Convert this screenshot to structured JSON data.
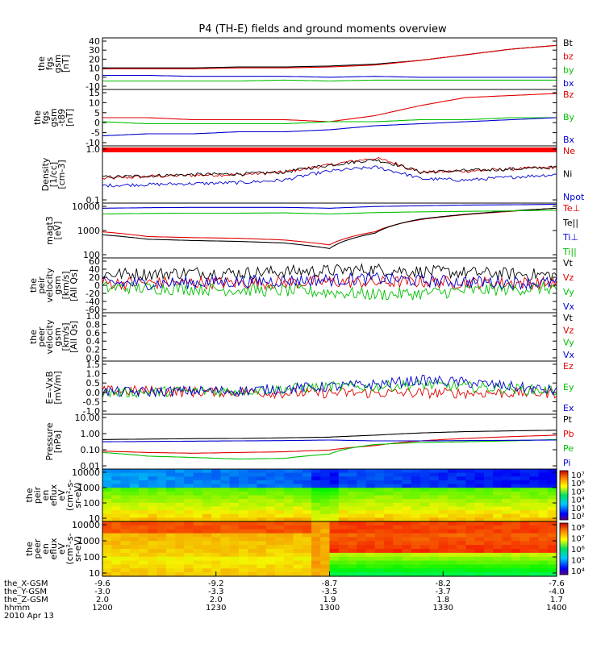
{
  "title": "P4 (TH-E) fields and ground moments overview",
  "panels": [
    {
      "ylabel_lines": [
        "the",
        "fgs",
        "gsm",
        "[nT]"
      ],
      "ticks": [
        "40",
        "30",
        "20",
        "10",
        "0",
        "-10"
      ],
      "legend": [
        {
          "text": "Bt",
          "color": "#000000"
        },
        {
          "text": "bz",
          "color": "#e00000"
        },
        {
          "text": "by",
          "color": "#00c000"
        },
        {
          "text": "bx",
          "color": "#0000d0"
        }
      ]
    },
    {
      "ylabel_lines": [
        "the",
        "fgs",
        "gsm",
        "-t89",
        "[nT]"
      ],
      "ticks": [
        "15",
        "10",
        "5",
        "0",
        "-5",
        "-10"
      ],
      "legend": [
        {
          "text": "Bz",
          "color": "#e00000"
        },
        {
          "text": "By",
          "color": "#00c000"
        },
        {
          "text": "Bx",
          "color": "#0000d0"
        }
      ]
    },
    {
      "ylabel_lines": [
        "Density",
        "[1/cc]",
        "[cm-3]"
      ],
      "ticks": [
        "1.0",
        "0.1"
      ],
      "legend": [
        {
          "text": "Ne",
          "color": "#e00000"
        },
        {
          "text": "Ni",
          "color": "#000000"
        },
        {
          "text": "Npot",
          "color": "#0000d0"
        }
      ]
    },
    {
      "ylabel_lines": [
        "magt3",
        "[eV]"
      ],
      "ticks": [
        "10000",
        "1000",
        "100"
      ],
      "legend": [
        {
          "text": "Te⊥",
          "color": "#e00000"
        },
        {
          "text": "Te||",
          "color": "#000000"
        },
        {
          "text": "Ti⊥",
          "color": "#0000d0"
        },
        {
          "text": "Ti||",
          "color": "#00c000"
        }
      ]
    },
    {
      "ylabel_lines": [
        "the",
        "peir",
        "velocity",
        "gsm",
        "[km/s]",
        "[All Qs]"
      ],
      "ticks": [
        "60",
        "40",
        "20",
        "0",
        "-20",
        "-40",
        "-60"
      ],
      "legend": [
        {
          "text": "Vt",
          "color": "#000000"
        },
        {
          "text": "Vz",
          "color": "#e00000"
        },
        {
          "text": "Vy",
          "color": "#00c000"
        },
        {
          "text": "Vx",
          "color": "#0000d0"
        }
      ]
    },
    {
      "ylabel_lines": [
        "the",
        "peer",
        "velocity",
        "gsm",
        "[km/s]",
        "[All Qs]"
      ],
      "ticks": [
        "1.0",
        "0.8",
        "0.6",
        "0.4",
        "0.2",
        "0.0"
      ],
      "legend": [
        {
          "text": "Vt",
          "color": "#000000"
        },
        {
          "text": "Vz",
          "color": "#e00000"
        },
        {
          "text": "Vy",
          "color": "#00c000"
        },
        {
          "text": "Vx",
          "color": "#0000d0"
        }
      ]
    },
    {
      "ylabel_lines": [
        "E=-VxB",
        "[mV/m]"
      ],
      "ticks": [
        "1.5",
        "1.0",
        "0.5",
        "0.0",
        "-0.5",
        "-1.0"
      ],
      "legend": [
        {
          "text": "Ez",
          "color": "#e00000"
        },
        {
          "text": "Ey",
          "color": "#00c000"
        },
        {
          "text": "Ex",
          "color": "#0000d0"
        }
      ]
    },
    {
      "ylabel_lines": [
        "Pressure",
        "[nPa]"
      ],
      "ticks": [
        "10.00",
        "1.00",
        "0.10",
        "0.01"
      ],
      "legend": [
        {
          "text": "Pt",
          "color": "#000000"
        },
        {
          "text": "Pb",
          "color": "#e00000"
        },
        {
          "text": "Pe",
          "color": "#00c000"
        },
        {
          "text": "Pi",
          "color": "#0000d0"
        }
      ]
    },
    {
      "ylabel_lines": [
        "the",
        "peir",
        "en",
        "eflux",
        "eV",
        "(cm²-s-",
        "sr-eV)"
      ],
      "ticks": [
        "10000",
        "1000",
        "100",
        "10"
      ],
      "cbar_ticks": [
        "10⁷",
        "10⁶",
        "10⁵",
        "10⁴",
        "10³",
        "10²"
      ]
    },
    {
      "ylabel_lines": [
        "the",
        "peer",
        "en",
        "eflux",
        "eV",
        "(cm²-s-",
        "sr-eV)"
      ],
      "ticks": [
        "10000",
        "1000",
        "100",
        "10"
      ],
      "cbar_ticks": [
        "10⁸",
        "10⁷",
        "10⁶",
        "10⁵",
        "10⁴"
      ]
    }
  ],
  "xaxis": {
    "row_labels": [
      "the_X-GSM",
      "the_Y-GSM",
      "the_Z-GSM",
      "hhmm",
      "2010 Apr 13"
    ],
    "ticks": [
      {
        "x_gsm": "-9.6",
        "y_gsm": "-3.0",
        "z_gsm": "2.0",
        "hhmm": "1200"
      },
      {
        "x_gsm": "-9.2",
        "y_gsm": "-3.3",
        "z_gsm": "2.0",
        "hhmm": "1230"
      },
      {
        "x_gsm": "-8.7",
        "y_gsm": "-3.5",
        "z_gsm": "1.9",
        "hhmm": "1300"
      },
      {
        "x_gsm": "-8.2",
        "y_gsm": "-3.7",
        "z_gsm": "1.8",
        "hhmm": "1330"
      },
      {
        "x_gsm": "-7.6",
        "y_gsm": "-4.0",
        "z_gsm": "1.7",
        "hhmm": "1400"
      }
    ]
  },
  "chart_data": {
    "type": "line",
    "title": "P4 (TH-E) fields and ground moments overview",
    "x": {
      "label": "hhmm",
      "ticks": [
        "1200",
        "1230",
        "1300",
        "1330",
        "1400"
      ],
      "date": "2010 Apr 13"
    },
    "panels": [
      {
        "name": "fgs gsm",
        "unit": "nT",
        "ylim": [
          -10,
          45
        ],
        "series": [
          {
            "name": "Bt",
            "values": [
              13,
              13,
              13,
              14,
              14,
              15,
              17,
              21,
              27,
              33,
              37
            ]
          },
          {
            "name": "bz",
            "values": [
              12,
              12,
              12,
              13,
              13,
              14,
              16,
              21,
              27,
              33,
              37
            ]
          },
          {
            "name": "by",
            "values": [
              -1,
              -1,
              -1,
              -1,
              0,
              -1,
              0,
              0,
              0,
              0,
              0
            ]
          },
          {
            "name": "bx",
            "values": [
              5,
              5,
              4,
              4,
              4,
              3,
              4,
              3,
              3,
              3,
              3
            ]
          }
        ]
      },
      {
        "name": "fgs gsm -t89",
        "unit": "nT",
        "ylim": [
          -12,
          16
        ],
        "series": [
          {
            "name": "Bz",
            "values": [
              2,
              2,
              1,
              1,
              1,
              0,
              3,
              8,
              12,
              13,
              14
            ]
          },
          {
            "name": "By",
            "values": [
              0,
              -1,
              -1,
              -1,
              -1,
              0,
              0,
              1,
              1,
              2,
              2
            ]
          },
          {
            "name": "Bx",
            "values": [
              -7,
              -6,
              -6,
              -5,
              -5,
              -4,
              -2,
              -1,
              0,
              1,
              2
            ]
          }
        ]
      },
      {
        "name": "Density",
        "unit": "1/cc",
        "scale": "log",
        "ylim": [
          0.1,
          1.3
        ],
        "series": [
          {
            "name": "Ne",
            "values": [
              0.3,
              0.33,
              0.35,
              0.36,
              0.4,
              0.55,
              0.75,
              0.4,
              0.42,
              0.46,
              0.5
            ]
          },
          {
            "name": "Ni",
            "values": [
              0.32,
              0.34,
              0.36,
              0.37,
              0.4,
              0.55,
              0.7,
              0.4,
              0.43,
              0.46,
              0.5
            ]
          },
          {
            "name": "Npot",
            "values": [
              0.22,
              0.23,
              0.24,
              0.25,
              0.28,
              0.42,
              0.5,
              0.3,
              0.28,
              0.32,
              0.36
            ]
          }
        ]
      },
      {
        "name": "magt3",
        "unit": "eV",
        "scale": "log",
        "ylim": [
          100,
          10000
        ],
        "series": [
          {
            "name": "Te⊥",
            "values": [
              900,
              600,
              550,
              520,
              450,
              300,
              900,
              2500,
              3800,
              5000,
              6500
            ]
          },
          {
            "name": "Te||",
            "values": [
              700,
              480,
              430,
              400,
              350,
              220,
              800,
              2600,
              3900,
              5200,
              6500
            ]
          },
          {
            "name": "Ti⊥",
            "values": [
              6500,
              6800,
              7000,
              7000,
              7000,
              6500,
              7500,
              8000,
              8500,
              8700,
              9000
            ]
          },
          {
            "name": "Ti||",
            "values": [
              4000,
              4200,
              4300,
              4300,
              4400,
              4000,
              4500,
              4800,
              5000,
              5200,
              5500
            ]
          }
        ]
      },
      {
        "name": "peir velocity gsm",
        "unit": "km/s",
        "ylim": [
          -60,
          60
        ],
        "series": [
          {
            "name": "Vt",
            "values": [
              25,
              25,
              28,
              27,
              30,
              32,
              35,
              30,
              28,
              25,
              22
            ]
          },
          {
            "name": "Vz",
            "values": [
              5,
              5,
              6,
              5,
              6,
              8,
              6,
              8,
              6,
              5,
              5
            ]
          },
          {
            "name": "Vy",
            "values": [
              -5,
              -6,
              -8,
              -10,
              -12,
              -15,
              -20,
              -18,
              -12,
              -8,
              -6
            ]
          },
          {
            "name": "Vx",
            "values": [
              5,
              4,
              6,
              8,
              10,
              12,
              15,
              10,
              8,
              6,
              5
            ]
          }
        ]
      },
      {
        "name": "peer velocity gsm",
        "unit": "km/s",
        "ylim": [
          0,
          1
        ],
        "series": []
      },
      {
        "name": "E=-VxB",
        "unit": "mV/m",
        "ylim": [
          -1,
          1.5
        ],
        "series": [
          {
            "name": "Ez",
            "values": [
              0.1,
              0.1,
              0.05,
              0.05,
              0.0,
              0.0,
              0.0,
              0.0,
              0.0,
              0.0,
              0.0
            ]
          },
          {
            "name": "Ey",
            "values": [
              0.0,
              0.05,
              0.1,
              0.1,
              0.2,
              0.3,
              0.3,
              0.4,
              0.3,
              0.2,
              0.1
            ]
          },
          {
            "name": "Ex",
            "values": [
              0.05,
              0.05,
              0.1,
              0.1,
              0.2,
              0.3,
              0.4,
              0.6,
              0.5,
              0.3,
              0.1
            ]
          }
        ]
      },
      {
        "name": "Pressure",
        "unit": "nPa",
        "scale": "log",
        "ylim": [
          0.005,
          10
        ],
        "series": [
          {
            "name": "Pt",
            "values": [
              0.3,
              0.32,
              0.34,
              0.35,
              0.38,
              0.42,
              0.55,
              0.75,
              0.9,
              1.0,
              1.1
            ]
          },
          {
            "name": "Pb",
            "values": [
              0.06,
              0.05,
              0.045,
              0.05,
              0.055,
              0.07,
              0.13,
              0.25,
              0.35,
              0.45,
              0.55
            ]
          },
          {
            "name": "Pe",
            "values": [
              0.05,
              0.03,
              0.025,
              0.02,
              0.022,
              0.04,
              0.15,
              0.2,
              0.22,
              0.25,
              0.3
            ]
          },
          {
            "name": "Pi",
            "values": [
              0.22,
              0.23,
              0.24,
              0.25,
              0.26,
              0.28,
              0.25,
              0.25,
              0.26,
              0.27,
              0.28
            ]
          }
        ]
      },
      {
        "name": "peir en eflux",
        "type": "heatmap",
        "scale": "log",
        "ylim": [
          7,
          20000
        ],
        "clim": [
          100,
          10000000
        ]
      },
      {
        "name": "peer en eflux",
        "type": "heatmap",
        "scale": "log",
        "ylim": [
          7,
          20000
        ],
        "clim": [
          10000,
          100000000
        ]
      }
    ]
  }
}
